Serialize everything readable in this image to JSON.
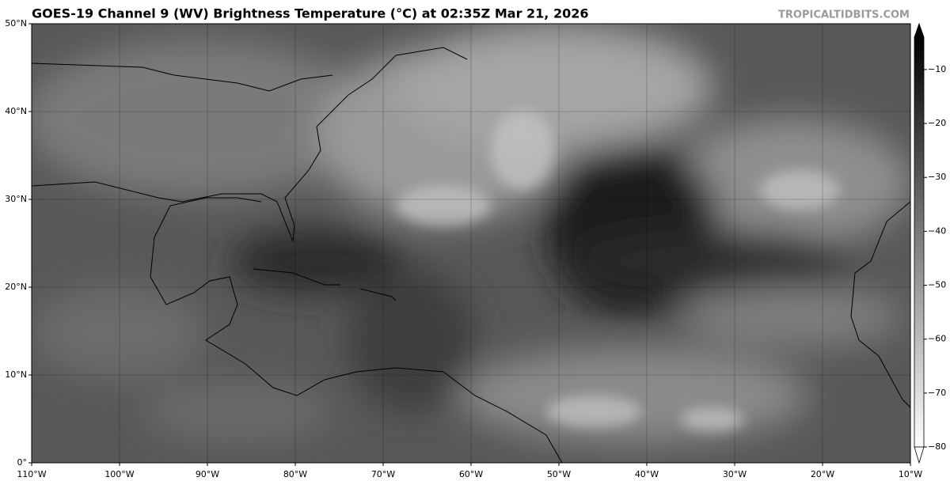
{
  "title": "GOES-19 Channel 9 (WV) Brightness Temperature (°C) at 02:35Z Mar 21, 2026",
  "watermark": "TROPICALTIDBITS.COM",
  "map": {
    "xlim": [
      -110,
      -10
    ],
    "ylim": [
      0,
      50
    ],
    "xticks": [
      {
        "value": -110,
        "label": "110°W"
      },
      {
        "value": -100,
        "label": "100°W"
      },
      {
        "value": -90,
        "label": "90°W"
      },
      {
        "value": -80,
        "label": "80°W"
      },
      {
        "value": -70,
        "label": "70°W"
      },
      {
        "value": -60,
        "label": "60°W"
      },
      {
        "value": -50,
        "label": "50°W"
      },
      {
        "value": -40,
        "label": "40°W"
      },
      {
        "value": -30,
        "label": "30°W"
      },
      {
        "value": -20,
        "label": "20°W"
      },
      {
        "value": -10,
        "label": "10°W"
      }
    ],
    "yticks": [
      {
        "value": 0,
        "label": "0°"
      },
      {
        "value": 10,
        "label": "10°N"
      },
      {
        "value": 20,
        "label": "20°N"
      },
      {
        "value": 30,
        "label": "30°N"
      },
      {
        "value": 40,
        "label": "40°N"
      },
      {
        "value": 50,
        "label": "50°N"
      }
    ],
    "grid": true
  },
  "colorbar": {
    "lim": [
      -80,
      -4
    ],
    "ticks": [
      {
        "value": -10,
        "label": "−10"
      },
      {
        "value": -20,
        "label": "−20"
      },
      {
        "value": -30,
        "label": "−30"
      },
      {
        "value": -40,
        "label": "−40"
      },
      {
        "value": -50,
        "label": "−50"
      },
      {
        "value": -60,
        "label": "−60"
      },
      {
        "value": -70,
        "label": "−70"
      },
      {
        "value": -80,
        "label": "−80"
      }
    ]
  }
}
